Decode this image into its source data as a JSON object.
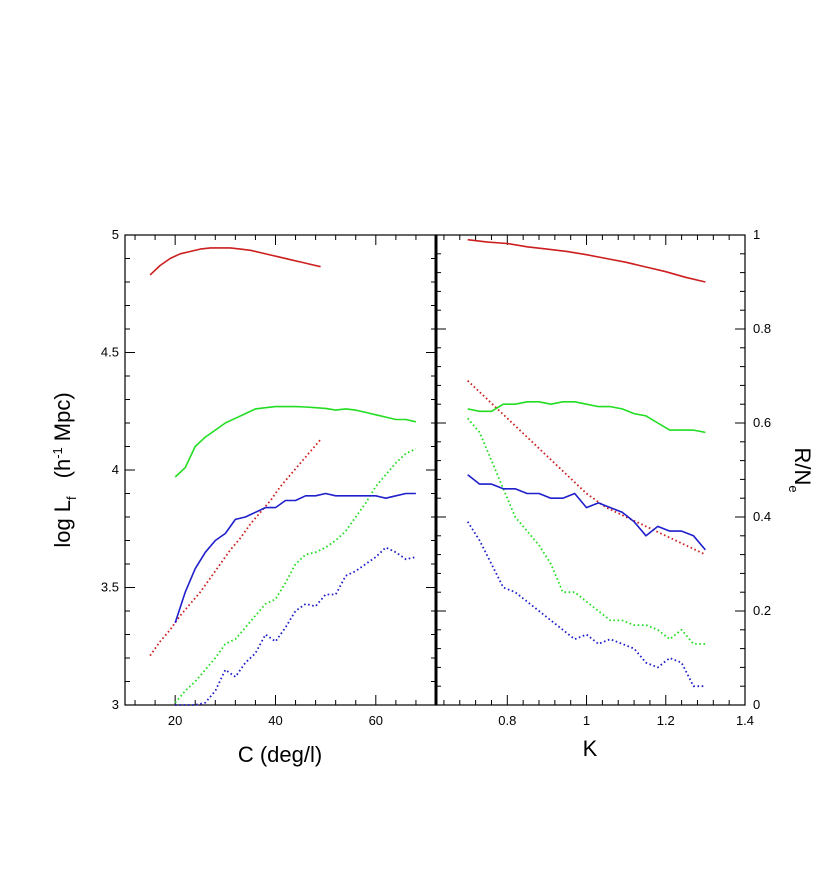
{
  "chart_data": [
    {
      "type": "line",
      "panel": "left",
      "xlabel": "C (deg/l)",
      "ylabel_main": "log L",
      "ylabel_sub": "f",
      "ylabel_units": "(h",
      "ylabel_exp": "-1",
      "ylabel_units2": "Mpc)",
      "xlim": [
        10,
        72
      ],
      "ylim": [
        3,
        5
      ],
      "xticks": [
        20,
        40,
        60
      ],
      "yticks": [
        3,
        3.5,
        4,
        4.5,
        5
      ],
      "ytick_labels": [
        "3",
        "3.5",
        "4",
        "4.5",
        "5"
      ],
      "series": [
        {
          "name": "red-solid",
          "color": "#cc1f1f",
          "style": "solid",
          "x": [
            15,
            17,
            19,
            21,
            23,
            25,
            27,
            29,
            31,
            33,
            35,
            37,
            39,
            41,
            43,
            45,
            47,
            49
          ],
          "y": [
            4.83,
            4.87,
            4.9,
            4.92,
            4.93,
            4.94,
            4.945,
            4.945,
            4.945,
            4.94,
            4.935,
            4.925,
            4.915,
            4.905,
            4.895,
            4.885,
            4.875,
            4.865
          ]
        },
        {
          "name": "red-dotted",
          "color": "#cc1f1f",
          "style": "dotted",
          "x": [
            15,
            17,
            19,
            21,
            23,
            25,
            27,
            29,
            31,
            33,
            35,
            37,
            39,
            41,
            43,
            45,
            47,
            49
          ],
          "y": [
            3.21,
            3.27,
            3.32,
            3.38,
            3.43,
            3.48,
            3.54,
            3.6,
            3.66,
            3.71,
            3.77,
            3.82,
            3.87,
            3.93,
            3.98,
            4.03,
            4.08,
            4.13
          ]
        },
        {
          "name": "green-solid",
          "color": "#22dd22",
          "style": "solid",
          "x": [
            20,
            22,
            24,
            26,
            28,
            30,
            32,
            34,
            36,
            38,
            40,
            42,
            44,
            46,
            48,
            50,
            52,
            54,
            56,
            58,
            60,
            62,
            64,
            66,
            68
          ],
          "y": [
            3.97,
            4.01,
            4.1,
            4.14,
            4.17,
            4.2,
            4.22,
            4.24,
            4.26,
            4.265,
            4.27,
            4.27,
            4.27,
            4.268,
            4.265,
            4.262,
            4.255,
            4.26,
            4.255,
            4.245,
            4.235,
            4.225,
            4.215,
            4.215,
            4.205
          ]
        },
        {
          "name": "green-dotted",
          "color": "#22dd22",
          "style": "dotted",
          "x": [
            20,
            22,
            24,
            26,
            28,
            30,
            32,
            34,
            36,
            38,
            40,
            42,
            44,
            46,
            48,
            50,
            52,
            54,
            56,
            58,
            60,
            62,
            64,
            66,
            68
          ],
          "y": [
            3.01,
            3.06,
            3.1,
            3.15,
            3.2,
            3.26,
            3.28,
            3.33,
            3.38,
            3.43,
            3.45,
            3.52,
            3.6,
            3.64,
            3.65,
            3.67,
            3.7,
            3.74,
            3.8,
            3.86,
            3.93,
            3.98,
            4.03,
            4.07,
            4.09
          ]
        },
        {
          "name": "blue-solid",
          "color": "#1f1fcc",
          "style": "solid",
          "x": [
            20,
            22,
            24,
            26,
            28,
            30,
            32,
            34,
            36,
            38,
            40,
            42,
            44,
            46,
            48,
            50,
            52,
            54,
            56,
            58,
            60,
            62,
            64,
            66,
            68
          ],
          "y": [
            3.35,
            3.48,
            3.58,
            3.65,
            3.7,
            3.73,
            3.79,
            3.8,
            3.82,
            3.84,
            3.84,
            3.87,
            3.87,
            3.89,
            3.89,
            3.9,
            3.89,
            3.89,
            3.89,
            3.89,
            3.89,
            3.88,
            3.89,
            3.9,
            3.9
          ]
        },
        {
          "name": "blue-dotted",
          "color": "#1f1fcc",
          "style": "dotted",
          "x": [
            20,
            22,
            24,
            26,
            28,
            30,
            32,
            34,
            36,
            38,
            40,
            42,
            44,
            46,
            48,
            50,
            52,
            54,
            56,
            58,
            60,
            62,
            64,
            66,
            68
          ],
          "y": [
            3.0,
            3.0,
            3.0,
            3.01,
            3.06,
            3.15,
            3.12,
            3.18,
            3.22,
            3.3,
            3.27,
            3.33,
            3.4,
            3.43,
            3.42,
            3.47,
            3.47,
            3.55,
            3.57,
            3.6,
            3.63,
            3.67,
            3.65,
            3.62,
            3.63
          ]
        }
      ]
    },
    {
      "type": "line",
      "panel": "right",
      "xlabel": "K",
      "ylabel_main": "R/N",
      "ylabel_sub": "e",
      "xlim": [
        0.62,
        1.4
      ],
      "ylim": [
        0,
        1
      ],
      "xticks": [
        0.8,
        1,
        1.2,
        1.4
      ],
      "xtick_labels": [
        "0.8",
        "1",
        "1.2",
        "1.4"
      ],
      "yticks": [
        0,
        0.2,
        0.4,
        0.6,
        0.8,
        1
      ],
      "ytick_labels": [
        "0",
        "0.2",
        "0.4",
        "0.6",
        "0.8",
        "1"
      ],
      "series": [
        {
          "name": "red-solid",
          "color": "#cc1f1f",
          "style": "solid",
          "x": [
            0.7,
            0.75,
            0.8,
            0.85,
            0.9,
            0.95,
            1.0,
            1.05,
            1.1,
            1.15,
            1.2,
            1.25,
            1.3
          ],
          "y": [
            0.99,
            0.985,
            0.982,
            0.975,
            0.97,
            0.965,
            0.958,
            0.95,
            0.942,
            0.932,
            0.922,
            0.91,
            0.9
          ]
        },
        {
          "name": "red-dotted",
          "color": "#cc1f1f",
          "style": "dotted",
          "x": [
            0.7,
            0.75,
            0.8,
            0.85,
            0.9,
            0.95,
            1.0,
            1.05,
            1.1,
            1.15,
            1.2,
            1.25,
            1.3
          ],
          "y": [
            0.69,
            0.65,
            0.61,
            0.57,
            0.53,
            0.49,
            0.45,
            0.42,
            0.4,
            0.38,
            0.36,
            0.34,
            0.32
          ]
        },
        {
          "name": "green-solid",
          "color": "#22dd22",
          "style": "solid",
          "x": [
            0.7,
            0.73,
            0.76,
            0.79,
            0.82,
            0.85,
            0.88,
            0.91,
            0.94,
            0.97,
            1.0,
            1.03,
            1.06,
            1.09,
            1.12,
            1.15,
            1.18,
            1.21,
            1.24,
            1.27,
            1.3
          ],
          "y": [
            0.63,
            0.625,
            0.625,
            0.64,
            0.64,
            0.645,
            0.645,
            0.64,
            0.645,
            0.645,
            0.64,
            0.635,
            0.635,
            0.63,
            0.62,
            0.615,
            0.6,
            0.585,
            0.585,
            0.585,
            0.58
          ]
        },
        {
          "name": "green-dotted",
          "color": "#22dd22",
          "style": "dotted",
          "x": [
            0.7,
            0.73,
            0.76,
            0.79,
            0.82,
            0.85,
            0.88,
            0.91,
            0.94,
            0.97,
            1.0,
            1.03,
            1.06,
            1.09,
            1.12,
            1.15,
            1.18,
            1.21,
            1.24,
            1.27,
            1.3
          ],
          "y": [
            0.61,
            0.58,
            0.52,
            0.46,
            0.4,
            0.37,
            0.34,
            0.3,
            0.24,
            0.24,
            0.22,
            0.2,
            0.18,
            0.18,
            0.17,
            0.17,
            0.16,
            0.14,
            0.16,
            0.13,
            0.13
          ]
        },
        {
          "name": "blue-solid",
          "color": "#1f1fcc",
          "style": "solid",
          "x": [
            0.7,
            0.73,
            0.76,
            0.79,
            0.82,
            0.85,
            0.88,
            0.91,
            0.94,
            0.97,
            1.0,
            1.03,
            1.06,
            1.09,
            1.12,
            1.15,
            1.18,
            1.21,
            1.24,
            1.27,
            1.3
          ],
          "y": [
            0.49,
            0.47,
            0.47,
            0.46,
            0.46,
            0.45,
            0.45,
            0.44,
            0.44,
            0.45,
            0.42,
            0.43,
            0.42,
            0.41,
            0.39,
            0.36,
            0.38,
            0.37,
            0.37,
            0.36,
            0.33
          ]
        },
        {
          "name": "blue-dotted",
          "color": "#1f1fcc",
          "style": "dotted",
          "x": [
            0.7,
            0.73,
            0.76,
            0.79,
            0.82,
            0.85,
            0.88,
            0.91,
            0.94,
            0.97,
            1.0,
            1.03,
            1.06,
            1.09,
            1.12,
            1.15,
            1.18,
            1.21,
            1.24,
            1.27,
            1.3
          ],
          "y": [
            0.39,
            0.35,
            0.3,
            0.25,
            0.24,
            0.22,
            0.2,
            0.18,
            0.16,
            0.14,
            0.15,
            0.13,
            0.14,
            0.13,
            0.12,
            0.09,
            0.08,
            0.1,
            0.09,
            0.04,
            0.04
          ]
        }
      ]
    }
  ]
}
